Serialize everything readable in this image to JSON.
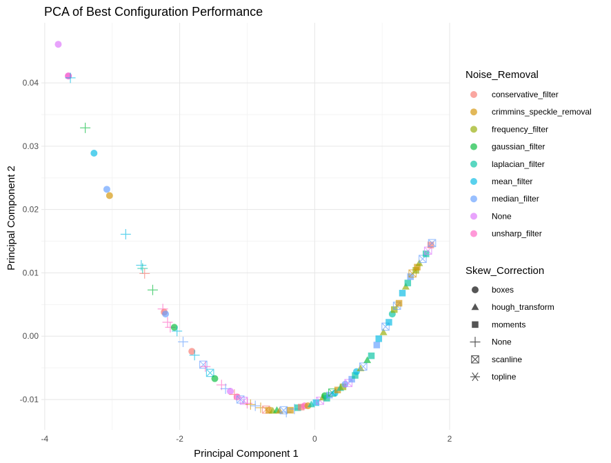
{
  "chart_data": {
    "type": "scatter",
    "title": "PCA of Best Configuration Performance",
    "xlabel": "Principal Component 1",
    "ylabel": "Principal Component 2",
    "xlim": [
      -4.05,
      2.0
    ],
    "ylim": [
      -0.0148,
      0.0495
    ],
    "x_ticks": [
      -4,
      -2,
      0,
      2
    ],
    "x_tick_labels": [
      "-4",
      "-2",
      "0",
      "2"
    ],
    "y_ticks": [
      -0.01,
      0.0,
      0.01,
      0.02,
      0.03,
      0.04
    ],
    "y_tick_labels": [
      "-0.01",
      "0.00",
      "0.01",
      "0.02",
      "0.03",
      "0.04"
    ],
    "grid": true,
    "color_legend": {
      "title": "Noise_Removal",
      "entries": [
        {
          "label": "conservative_filter",
          "color": "#F8766D"
        },
        {
          "label": "crimmins_speckle_removal",
          "color": "#D39200"
        },
        {
          "label": "frequency_filter",
          "color": "#93AA00"
        },
        {
          "label": "gaussian_filter",
          "color": "#00BA38"
        },
        {
          "label": "laplacian_filter",
          "color": "#00C19F"
        },
        {
          "label": "mean_filter",
          "color": "#00B9E3"
        },
        {
          "label": "median_filter",
          "color": "#619CFF"
        },
        {
          "label": "None",
          "color": "#DB72FB"
        },
        {
          "label": "unsharp_filter",
          "color": "#FF61C3"
        }
      ]
    },
    "shape_legend": {
      "title": "Skew_Correction",
      "entries": [
        {
          "label": "boxes",
          "shape": "circle"
        },
        {
          "label": "hough_transform",
          "shape": "triangle"
        },
        {
          "label": "moments",
          "shape": "square"
        },
        {
          "label": "None",
          "shape": "plus"
        },
        {
          "label": "scanline",
          "shape": "boxcross"
        },
        {
          "label": "topline",
          "shape": "asterisk"
        }
      ]
    },
    "points": [
      {
        "x": -3.8,
        "y": 0.0461,
        "noise": "None",
        "skew": "boxes"
      },
      {
        "x": -3.65,
        "y": 0.0411,
        "noise": "None",
        "skew": "boxes"
      },
      {
        "x": -3.65,
        "y": 0.0411,
        "noise": "unsharp_filter",
        "skew": "boxes"
      },
      {
        "x": -3.62,
        "y": 0.0408,
        "noise": "mean_filter",
        "skew": "None"
      },
      {
        "x": -3.4,
        "y": 0.0329,
        "noise": "gaussian_filter",
        "skew": "None"
      },
      {
        "x": -3.27,
        "y": 0.0289,
        "noise": "mean_filter",
        "skew": "boxes"
      },
      {
        "x": -3.08,
        "y": 0.0232,
        "noise": "median_filter",
        "skew": "boxes"
      },
      {
        "x": -3.04,
        "y": 0.0222,
        "noise": "crimmins_speckle_removal",
        "skew": "boxes"
      },
      {
        "x": -2.8,
        "y": 0.0161,
        "noise": "mean_filter",
        "skew": "None"
      },
      {
        "x": -2.57,
        "y": 0.0112,
        "noise": "mean_filter",
        "skew": "None"
      },
      {
        "x": -2.55,
        "y": 0.0107,
        "noise": "laplacian_filter",
        "skew": "None"
      },
      {
        "x": -2.52,
        "y": 0.0099,
        "noise": "conservative_filter",
        "skew": "None"
      },
      {
        "x": -2.4,
        "y": 0.0073,
        "noise": "gaussian_filter",
        "skew": "None"
      },
      {
        "x": -2.25,
        "y": 0.0043,
        "noise": "unsharp_filter",
        "skew": "None"
      },
      {
        "x": -2.23,
        "y": 0.0038,
        "noise": "conservative_filter",
        "skew": "boxes"
      },
      {
        "x": -2.21,
        "y": 0.0035,
        "noise": "median_filter",
        "skew": "boxes"
      },
      {
        "x": -2.18,
        "y": 0.0022,
        "noise": "unsharp_filter",
        "skew": "None"
      },
      {
        "x": -2.14,
        "y": 0.0014,
        "noise": "unsharp_filter",
        "skew": "None"
      },
      {
        "x": -2.08,
        "y": 0.0014,
        "noise": "gaussian_filter",
        "skew": "boxes"
      },
      {
        "x": -2.04,
        "y": 0.0008,
        "noise": "mean_filter",
        "skew": "None"
      },
      {
        "x": -1.95,
        "y": -0.0009,
        "noise": "median_filter",
        "skew": "None"
      },
      {
        "x": -1.82,
        "y": -0.0024,
        "noise": "conservative_filter",
        "skew": "boxes"
      },
      {
        "x": -1.78,
        "y": -0.003,
        "noise": "mean_filter",
        "skew": "None"
      },
      {
        "x": -1.65,
        "y": -0.0045,
        "noise": "median_filter",
        "skew": "scanline"
      },
      {
        "x": -1.62,
        "y": -0.0048,
        "noise": "unsharp_filter",
        "skew": "None"
      },
      {
        "x": -1.55,
        "y": -0.0058,
        "noise": "mean_filter",
        "skew": "scanline"
      },
      {
        "x": -1.48,
        "y": -0.0067,
        "noise": "gaussian_filter",
        "skew": "boxes"
      },
      {
        "x": -1.38,
        "y": -0.0077,
        "noise": "unsharp_filter",
        "skew": "None"
      },
      {
        "x": -1.32,
        "y": -0.0083,
        "noise": "median_filter",
        "skew": "None"
      },
      {
        "x": -1.25,
        "y": -0.0087,
        "noise": "None",
        "skew": "boxes"
      },
      {
        "x": -1.19,
        "y": -0.0092,
        "noise": "conservative_filter",
        "skew": "None"
      },
      {
        "x": -1.15,
        "y": -0.0096,
        "noise": "unsharp_filter",
        "skew": "boxes"
      },
      {
        "x": -1.1,
        "y": -0.01,
        "noise": "median_filter",
        "skew": "scanline"
      },
      {
        "x": -1.05,
        "y": -0.0102,
        "noise": "None",
        "skew": "scanline"
      },
      {
        "x": -1.0,
        "y": -0.0106,
        "noise": "unsharp_filter",
        "skew": "None"
      },
      {
        "x": -0.95,
        "y": -0.0108,
        "noise": "crimmins_speckle_removal",
        "skew": "None"
      },
      {
        "x": -0.88,
        "y": -0.011,
        "noise": "median_filter",
        "skew": "None"
      },
      {
        "x": -0.8,
        "y": -0.0113,
        "noise": "crimmins_speckle_removal",
        "skew": "None"
      },
      {
        "x": -0.72,
        "y": -0.0116,
        "noise": "conservative_filter",
        "skew": "scanline"
      },
      {
        "x": -0.68,
        "y": -0.0117,
        "noise": "crimmins_speckle_removal",
        "skew": "moments"
      },
      {
        "x": -0.62,
        "y": -0.0118,
        "noise": "frequency_filter",
        "skew": "triangle"
      },
      {
        "x": -0.56,
        "y": -0.0117,
        "noise": "gaussian_filter",
        "skew": "hough_transform"
      },
      {
        "x": -0.52,
        "y": -0.0118,
        "noise": "crimmins_speckle_removal",
        "skew": "hough_transform"
      },
      {
        "x": -0.46,
        "y": -0.0117,
        "noise": "median_filter",
        "skew": "scanline"
      },
      {
        "x": -0.42,
        "y": -0.012,
        "noise": "median_filter",
        "skew": "None"
      },
      {
        "x": -0.36,
        "y": -0.0117,
        "noise": "crimmins_speckle_removal",
        "skew": "moments"
      },
      {
        "x": -0.3,
        "y": -0.0115,
        "noise": "median_filter",
        "skew": "None"
      },
      {
        "x": -0.25,
        "y": -0.0113,
        "noise": "laplacian_filter",
        "skew": "moments"
      },
      {
        "x": -0.2,
        "y": -0.0112,
        "noise": "conservative_filter",
        "skew": "moments"
      },
      {
        "x": -0.15,
        "y": -0.011,
        "noise": "unsharp_filter",
        "skew": "boxes"
      },
      {
        "x": -0.1,
        "y": -0.011,
        "noise": "crimmins_speckle_removal",
        "skew": "boxes"
      },
      {
        "x": -0.05,
        "y": -0.0108,
        "noise": "laplacian_filter",
        "skew": "hough_transform"
      },
      {
        "x": 0.02,
        "y": -0.0105,
        "noise": "mean_filter",
        "skew": "moments"
      },
      {
        "x": 0.08,
        "y": -0.0102,
        "noise": "None",
        "skew": "scanline"
      },
      {
        "x": 0.12,
        "y": -0.0097,
        "noise": "frequency_filter",
        "skew": "hough_transform"
      },
      {
        "x": 0.15,
        "y": -0.0094,
        "noise": "gaussian_filter",
        "skew": "boxes"
      },
      {
        "x": 0.18,
        "y": -0.0098,
        "noise": "laplacian_filter",
        "skew": "moments"
      },
      {
        "x": 0.22,
        "y": -0.0093,
        "noise": "median_filter",
        "skew": "moments"
      },
      {
        "x": 0.26,
        "y": -0.0089,
        "noise": "gaussian_filter",
        "skew": "scanline"
      },
      {
        "x": 0.3,
        "y": -0.009,
        "noise": "mean_filter",
        "skew": "boxes"
      },
      {
        "x": 0.34,
        "y": -0.0085,
        "noise": "crimmins_speckle_removal",
        "skew": "moments"
      },
      {
        "x": 0.38,
        "y": -0.0082,
        "noise": "laplacian_filter",
        "skew": "hough_transform"
      },
      {
        "x": 0.42,
        "y": -0.008,
        "noise": "frequency_filter",
        "skew": "moments"
      },
      {
        "x": 0.45,
        "y": -0.0076,
        "noise": "median_filter",
        "skew": "boxes"
      },
      {
        "x": 0.5,
        "y": -0.0074,
        "noise": "None",
        "skew": "scanline"
      },
      {
        "x": 0.55,
        "y": -0.0068,
        "noise": "median_filter",
        "skew": "moments"
      },
      {
        "x": 0.6,
        "y": -0.0062,
        "noise": "laplacian_filter",
        "skew": "moments"
      },
      {
        "x": 0.62,
        "y": -0.0056,
        "noise": "mean_filter",
        "skew": "boxes"
      },
      {
        "x": 0.68,
        "y": -0.0051,
        "noise": "frequency_filter",
        "skew": "hough_transform"
      },
      {
        "x": 0.72,
        "y": -0.0048,
        "noise": "median_filter",
        "skew": "scanline"
      },
      {
        "x": 0.78,
        "y": -0.0038,
        "noise": "gaussian_filter",
        "skew": "hough_transform"
      },
      {
        "x": 0.84,
        "y": -0.0031,
        "noise": "laplacian_filter",
        "skew": "moments"
      },
      {
        "x": 0.92,
        "y": -0.0014,
        "noise": "median_filter",
        "skew": "moments"
      },
      {
        "x": 0.95,
        "y": -0.0004,
        "noise": "mean_filter",
        "skew": "moments"
      },
      {
        "x": 1.02,
        "y": 0.0006,
        "noise": "frequency_filter",
        "skew": "hough_transform"
      },
      {
        "x": 1.05,
        "y": 0.0015,
        "noise": "median_filter",
        "skew": "scanline"
      },
      {
        "x": 1.1,
        "y": 0.0022,
        "noise": "mean_filter",
        "skew": "moments"
      },
      {
        "x": 1.15,
        "y": 0.0035,
        "noise": "laplacian_filter",
        "skew": "boxes"
      },
      {
        "x": 1.18,
        "y": 0.0042,
        "noise": "frequency_filter",
        "skew": "moments"
      },
      {
        "x": 1.22,
        "y": 0.0048,
        "noise": "median_filter",
        "skew": "scanline"
      },
      {
        "x": 1.25,
        "y": 0.0052,
        "noise": "crimmins_speckle_removal",
        "skew": "moments"
      },
      {
        "x": 1.3,
        "y": 0.0068,
        "noise": "mean_filter",
        "skew": "moments"
      },
      {
        "x": 1.35,
        "y": 0.0078,
        "noise": "frequency_filter",
        "skew": "hough_transform"
      },
      {
        "x": 1.38,
        "y": 0.0084,
        "noise": "laplacian_filter",
        "skew": "moments"
      },
      {
        "x": 1.42,
        "y": 0.0094,
        "noise": "median_filter",
        "skew": "moments"
      },
      {
        "x": 1.45,
        "y": 0.0099,
        "noise": "crimmins_speckle_removal",
        "skew": "scanline"
      },
      {
        "x": 1.5,
        "y": 0.0104,
        "noise": "frequency_filter",
        "skew": "moments"
      },
      {
        "x": 1.52,
        "y": 0.0109,
        "noise": "crimmins_speckle_removal",
        "skew": "moments"
      },
      {
        "x": 1.55,
        "y": 0.0115,
        "noise": "frequency_filter",
        "skew": "hough_transform"
      },
      {
        "x": 1.6,
        "y": 0.0122,
        "noise": "median_filter",
        "skew": "scanline"
      },
      {
        "x": 1.65,
        "y": 0.013,
        "noise": "laplacian_filter",
        "skew": "moments"
      },
      {
        "x": 1.68,
        "y": 0.0135,
        "noise": "None",
        "skew": "scanline"
      },
      {
        "x": 1.72,
        "y": 0.0144,
        "noise": "conservative_filter",
        "skew": "moments"
      },
      {
        "x": 1.74,
        "y": 0.0147,
        "noise": "median_filter",
        "skew": "scanline"
      }
    ]
  }
}
